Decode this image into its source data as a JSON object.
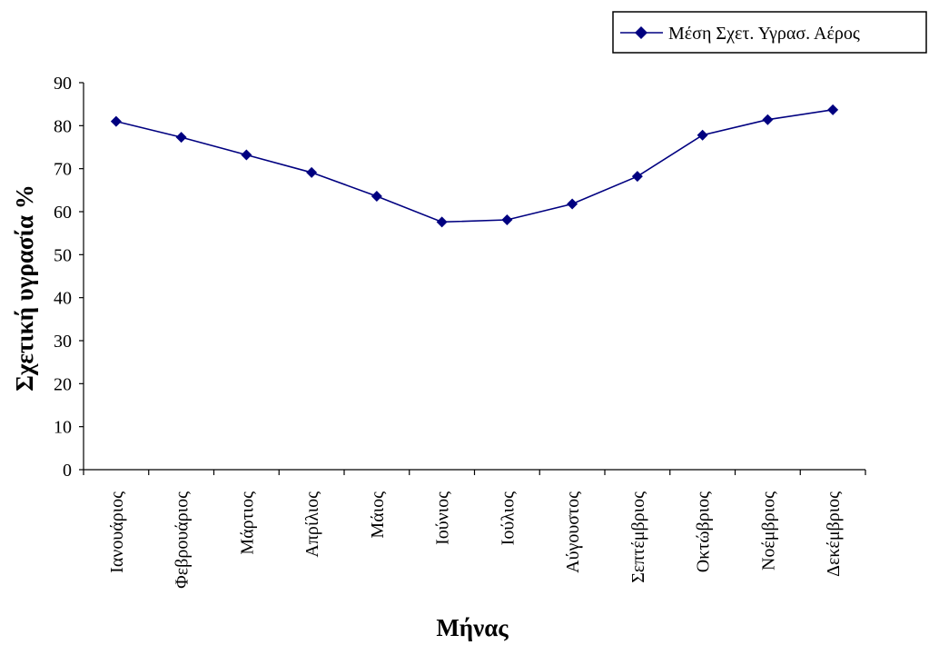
{
  "chart_data": {
    "type": "line",
    "xlabel": "Μήνας",
    "ylabel": "Σχετική υγρασία %",
    "ylim": [
      0,
      90
    ],
    "yticks": [
      0,
      10,
      20,
      30,
      40,
      50,
      60,
      70,
      80,
      90
    ],
    "grid": false,
    "legend_position": "top-right",
    "categories": [
      "Ιανουάριος",
      "Φεβρουάριος",
      "Μάρτιος",
      "Απρίλιος",
      "Μάιος",
      "Ιούνιος",
      "Ιούλιος",
      "Αύγουστος",
      "Σεπτέμβριος",
      "Οκτώβριος",
      "Νοέμβριος",
      "Δεκέμβριος"
    ],
    "series": [
      {
        "name": "Μέση Σχετ. Υγρασ. Αέρος",
        "color": "#000080",
        "marker": "diamond",
        "values": [
          81.0,
          77.3,
          73.2,
          69.1,
          63.6,
          57.6,
          58.1,
          61.8,
          68.2,
          77.8,
          81.4,
          83.7
        ]
      }
    ]
  }
}
